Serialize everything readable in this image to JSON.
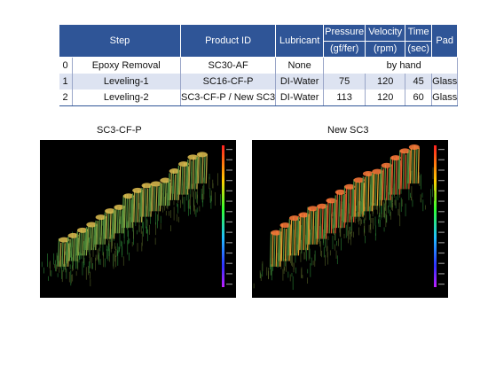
{
  "table": {
    "headers": {
      "step": "Step",
      "product_id": "Product ID",
      "lubricant": "Lubricant",
      "pressure": "Pressure",
      "pressure_unit": "(gf/fer)",
      "velocity": "Velocity",
      "velocity_unit": "(rpm)",
      "time": "Time",
      "time_unit": "(sec)",
      "pad": "Pad"
    },
    "rows": [
      {
        "idx": "0",
        "step": "Epoxy Removal",
        "product": "SC30-AF",
        "lubricant": "None",
        "merged": "by hand"
      },
      {
        "idx": "1",
        "step": "Leveling-1",
        "product": "SC16-CF-P",
        "lubricant": "DI-Water",
        "pressure": "75",
        "velocity": "120",
        "time": "45",
        "pad": "Glass"
      },
      {
        "idx": "2",
        "step": "Leveling-2",
        "product": "SC3-CF-P / New SC3",
        "lubricant": "DI-Water",
        "pressure": "113",
        "velocity": "120",
        "time": "60",
        "pad": "Glass"
      }
    ]
  },
  "figures": [
    {
      "title": "SC3-CF-P",
      "tone": "green"
    },
    {
      "title": "New SC3",
      "tone": "red"
    }
  ],
  "colors": {
    "header_bg": "#2f5597",
    "row_alt_bg": "#dde3f1",
    "panel_bg": "#000000"
  }
}
